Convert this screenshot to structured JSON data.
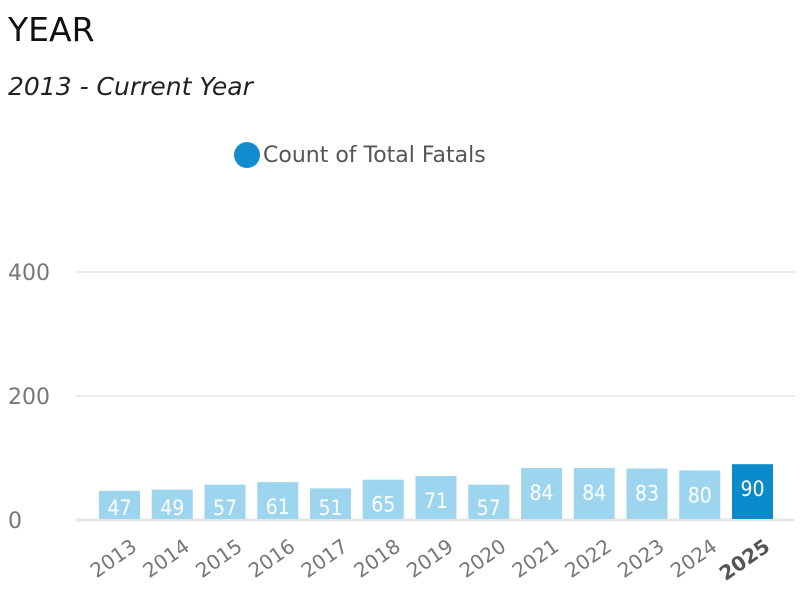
{
  "header": {
    "title": "YEAR",
    "subtitle": "2013 - Current Year"
  },
  "chart_data": {
    "type": "bar",
    "title": "YEAR",
    "subtitle": "2013 - Current Year",
    "legend": [
      {
        "label": "Count of Total Fatals",
        "color": "#118dcf"
      }
    ],
    "legend_position": "top",
    "categories": [
      "2013",
      "2014",
      "2015",
      "2016",
      "2017",
      "2018",
      "2019",
      "2020",
      "2021",
      "2022",
      "2023",
      "2024",
      "2025"
    ],
    "series": [
      {
        "name": "Count of Total Fatals",
        "values": [
          47,
          49,
          57,
          61,
          51,
          65,
          71,
          57,
          84,
          84,
          83,
          80,
          90
        ]
      }
    ],
    "highlighted": "2025",
    "colors": {
      "bar": "#9dd5ee",
      "highlight": "#0a8acb",
      "label": "#ffffff",
      "axis_text": "#777777",
      "grid": "#e6e6e6"
    },
    "y_ticks": [
      0,
      200,
      400
    ],
    "ylim": [
      0,
      400
    ],
    "grid": true,
    "xlabel": "",
    "ylabel": ""
  }
}
